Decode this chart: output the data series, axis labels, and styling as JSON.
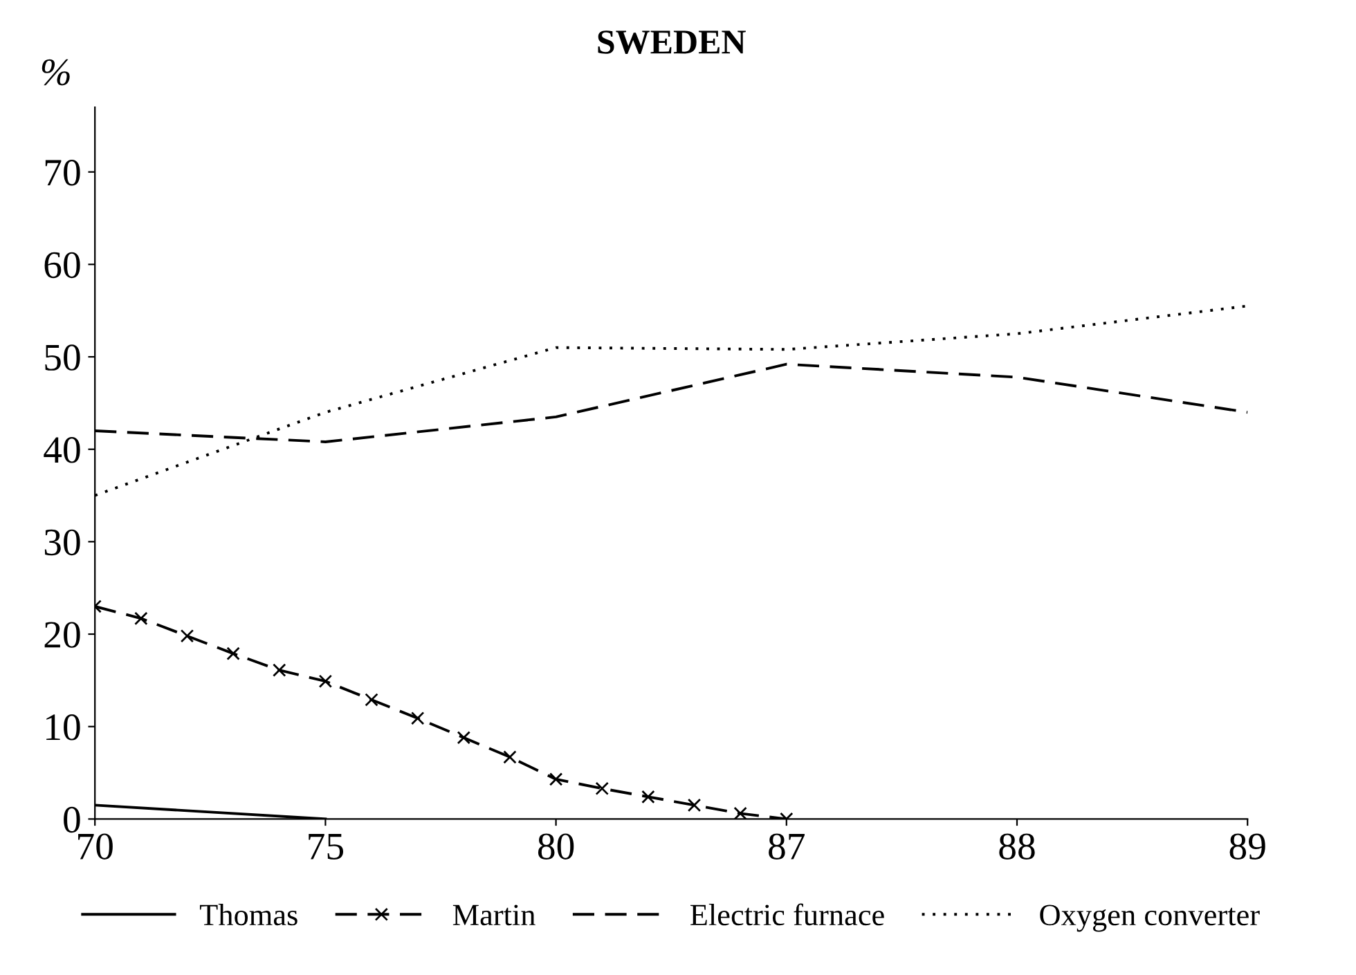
{
  "chart_data": {
    "type": "line",
    "title": "SWEDEN",
    "ylabel": "%",
    "categories": [
      "70",
      null,
      null,
      null,
      null,
      "75",
      null,
      null,
      null,
      null,
      "80",
      null,
      null,
      null,
      null,
      "87",
      null,
      null,
      null,
      null,
      "88",
      null,
      null,
      null,
      null,
      "89"
    ],
    "ylim": [
      0,
      77
    ],
    "yticks": [
      0,
      10,
      20,
      30,
      40,
      50,
      60,
      70
    ],
    "grid": false,
    "legend": "bottom",
    "series": [
      {
        "name": "Thomas",
        "color": "#000000",
        "line_style": "solid",
        "marker": "none",
        "values": [
          1.5,
          null,
          null,
          null,
          null,
          0,
          null,
          null,
          null,
          null,
          null,
          null,
          null,
          null,
          null,
          null,
          null,
          null,
          null,
          null,
          null,
          null,
          null,
          null,
          null,
          null
        ]
      },
      {
        "name": "Martin",
        "color": "#000000",
        "line_style": "dashed",
        "marker": "cross",
        "values": [
          23,
          21.7,
          19.8,
          17.9,
          16.1,
          14.9,
          12.9,
          10.9,
          8.8,
          6.7,
          4.3,
          3.3,
          2.4,
          1.5,
          0.6,
          0,
          null,
          null,
          null,
          null,
          null,
          null,
          null,
          null,
          null,
          null
        ]
      },
      {
        "name": "Electric furnace",
        "color": "#000000",
        "line_style": "dashed",
        "marker": "none",
        "values": [
          42,
          null,
          null,
          null,
          null,
          40.8,
          null,
          null,
          null,
          null,
          43.5,
          null,
          null,
          null,
          null,
          49.2,
          null,
          null,
          null,
          null,
          47.8,
          null,
          null,
          null,
          null,
          44
        ]
      },
      {
        "name": "Oxygen converter",
        "color": "#000000",
        "line_style": "dotted",
        "marker": "none",
        "values": [
          35,
          null,
          null,
          null,
          null,
          44,
          null,
          null,
          null,
          null,
          51,
          null,
          null,
          null,
          null,
          50.8,
          null,
          null,
          null,
          null,
          52.5,
          null,
          null,
          null,
          null,
          55.5
        ]
      }
    ]
  }
}
